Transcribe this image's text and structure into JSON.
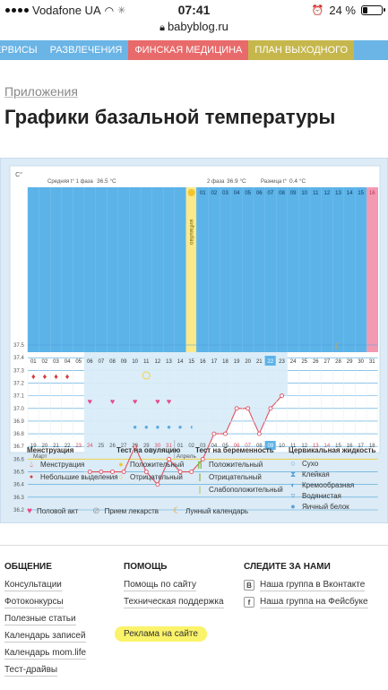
{
  "status_bar": {
    "carrier": "Vodafone UA",
    "time": "07:41",
    "battery": "24 %",
    "battery_level": 0.24
  },
  "url": "babyblog.ru",
  "nav": [
    {
      "label": "ервисы",
      "style": "plain"
    },
    {
      "label": "Развлечения",
      "style": "plain"
    },
    {
      "label": "Финская медицина",
      "style": "red"
    },
    {
      "label": "План выходного",
      "style": "gold"
    }
  ],
  "breadcrumb": "Приложения",
  "title": "Графики базальной температуры",
  "chart_header": {
    "unit": "C°",
    "avg1_label": "Средняя t° 1 фаза",
    "avg1_value": "36.5 °C",
    "phase2_label": "2 фаза",
    "phase2_value": "36.9 °C",
    "diff_label": "Разница t°",
    "diff_value": "0.4 °C",
    "ovulation_label": "овуляция"
  },
  "chart_data": {
    "type": "line",
    "ylabel": "C°",
    "ylim": [
      36.2,
      37.5
    ],
    "yticks": [
      "37.5",
      "37.4",
      "37.3",
      "37.2",
      "37.1",
      "37.0",
      "36.9",
      "36.8",
      "36.7",
      "36.6",
      "36.5",
      "36.4",
      "36.3",
      "36.2"
    ],
    "cycle_days_top": [
      "01",
      "02",
      "03",
      "04",
      "05",
      "06",
      "07",
      "08",
      "09",
      "10",
      "11",
      "12",
      "13",
      "14",
      "15",
      "16"
    ],
    "cycle_days_top_right": [
      "01",
      "02",
      "03",
      "04",
      "05",
      "06",
      "07",
      "08",
      "09",
      "10",
      "11",
      "12",
      "13",
      "14",
      "15",
      "16"
    ],
    "cycle_days_bottom": [
      "01",
      "02",
      "03",
      "04",
      "05",
      "06",
      "07",
      "08",
      "09",
      "10",
      "11",
      "12",
      "13",
      "14",
      "15",
      "16",
      "17",
      "18",
      "19",
      "20",
      "21",
      "22",
      "23",
      "24",
      "25",
      "26",
      "27",
      "28",
      "29",
      "30",
      "31"
    ],
    "dates": [
      "19",
      "20",
      "21",
      "22",
      "23",
      "24",
      "25",
      "26",
      "27",
      "28",
      "29",
      "30",
      "31",
      "01",
      "02",
      "03",
      "04",
      "05",
      "06",
      "07",
      "08",
      "09",
      "10",
      "11",
      "12",
      "13",
      "14",
      "15",
      "16",
      "17",
      "18"
    ],
    "date_red": [
      4,
      5,
      11,
      12,
      18,
      19,
      25,
      26
    ],
    "month_start": "Март",
    "month_second": "Апрель",
    "temps": [
      null,
      null,
      null,
      null,
      null,
      36.5,
      36.5,
      36.5,
      36.5,
      36.7,
      36.5,
      36.4,
      36.6,
      36.5,
      36.5,
      36.6,
      36.8,
      36.8,
      37.0,
      37.0,
      36.8,
      37.0,
      37.1,
      null,
      null,
      null,
      null,
      null,
      null,
      null,
      null
    ],
    "coverline": 36.6,
    "ovulation_day": 12,
    "today_day": 22,
    "menstruation_days": [
      1,
      2,
      3,
      4
    ],
    "sex_days": [
      5,
      7,
      9,
      11,
      12
    ],
    "mucus_days": [
      9,
      10,
      11,
      12,
      13
    ],
    "moon_day": 28,
    "positive_test_day": 12,
    "negative_test_day": 9
  },
  "legend": {
    "menstruation_title": "Менструация",
    "menstruation": "Менструация",
    "spotting": "Небольшие выделения",
    "ovulation_test_title": "Тест на овуляцию",
    "positive": "Положительный",
    "negative": "Отрицательный",
    "pregnancy_test_title": "Тест на беременность",
    "preg_positive": "Положительный",
    "preg_negative": "Отрицательный",
    "preg_weak": "Слабоположительный",
    "mucus_title": "Цервикальная жидкость",
    "dry": "Сухо",
    "sticky": "Клейкая",
    "creamy": "Кремообразная",
    "watery": "Водянистая",
    "eggwhite": "Яичный белок",
    "sex": "Половой акт",
    "meds": "Прием лекарств",
    "lunar": "Лунный календарь"
  },
  "footer": {
    "col1_title": "Общение",
    "col1_links": [
      "Консультации",
      "Фотоконкурсы",
      "Полезные статьи",
      "Календарь записей",
      "Календарь mom.life",
      "Тест-драйвы"
    ],
    "col2_title": "Помощь",
    "col2_links": [
      "Помощь по сайту",
      "Техническая поддержка"
    ],
    "col2_ad": "Реклама на сайте",
    "col3_title": "Следите за нами",
    "col3_links": [
      "Наша группа в Вконтакте",
      "Наша группа на Фейсбуке"
    ]
  }
}
